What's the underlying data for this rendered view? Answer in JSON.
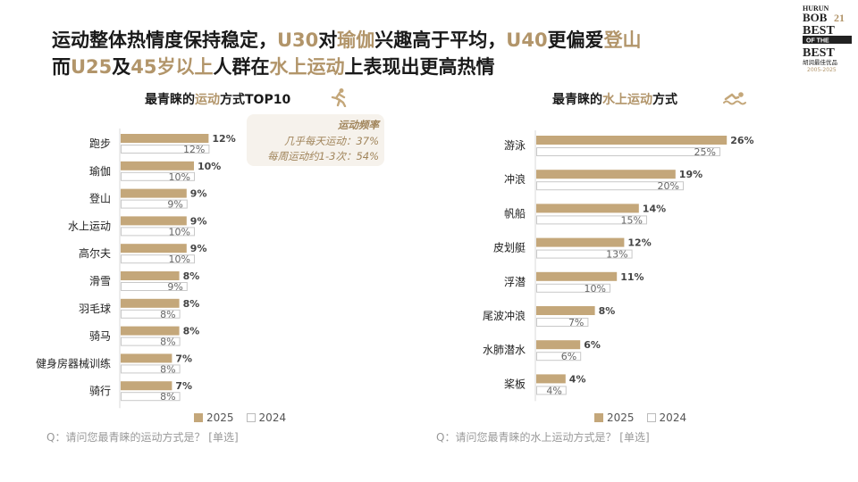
{
  "headline": {
    "line1": [
      {
        "t": "运动整体热情度保持稳定，",
        "h": false
      },
      {
        "t": "U30",
        "h": true
      },
      {
        "t": "对",
        "h": false
      },
      {
        "t": "瑜伽",
        "h": true
      },
      {
        "t": "兴趣高于平均，",
        "h": false
      },
      {
        "t": "U40",
        "h": true
      },
      {
        "t": "更偏爱",
        "h": false
      },
      {
        "t": "登山",
        "h": true
      }
    ],
    "line2": [
      {
        "t": "而",
        "h": false
      },
      {
        "t": "U25",
        "h": true
      },
      {
        "t": "及",
        "h": false
      },
      {
        "t": "45岁以上",
        "h": true
      },
      {
        "t": "人群在",
        "h": false
      },
      {
        "t": "水上运动",
        "h": true
      },
      {
        "t": "上表现出更高热情",
        "h": false
      }
    ]
  },
  "logo": {
    "line1": "HURUN",
    "line2": "BOB",
    "num": "21",
    "line3": "BEST",
    "line4": "OF THE",
    "line5": "BEST",
    "line6": "胡润最佳优品",
    "years": "2005-2025"
  },
  "left_panel": {
    "title_pre": "最青睐的",
    "title_hl": "运动",
    "title_post": "方式TOP10",
    "icon": "running-person-icon",
    "callout": {
      "title": "运动频率",
      "line1": "几乎每天运动：37%",
      "line2": "每周运动约1-3次：54%"
    },
    "question": "Q：请问您最青睐的运动方式是？ [单选]"
  },
  "right_panel": {
    "title_pre": "最青睐的",
    "title_hl": "水上运动",
    "title_post": "方式",
    "icon": "swimmer-icon",
    "question": "Q：请问您最青睐的水上运动方式是？ [单选]"
  },
  "legend": {
    "y2025": "2025",
    "y2024": "2024"
  },
  "colors": {
    "series2025": "#c4a77a",
    "series2024": "#ffffff",
    "highlight": "#b2956a"
  },
  "chart_data": [
    {
      "type": "bar",
      "orientation": "horizontal",
      "title": "最青睐的运动方式TOP10",
      "categories": [
        "跑步",
        "瑜伽",
        "登山",
        "水上运动",
        "高尔夫",
        "滑雪",
        "羽毛球",
        "骑马",
        "健身房器械训练",
        "骑行"
      ],
      "series": [
        {
          "name": "2025",
          "values": [
            12,
            10,
            9,
            9,
            9,
            8,
            8,
            8,
            7,
            7
          ]
        },
        {
          "name": "2024",
          "values": [
            12,
            10,
            9,
            10,
            10,
            9,
            8,
            8,
            8,
            8
          ]
        }
      ],
      "unit": "%"
    },
    {
      "type": "bar",
      "orientation": "horizontal",
      "title": "最青睐的水上运动方式",
      "categories": [
        "游泳",
        "冲浪",
        "帆船",
        "皮划艇",
        "浮潜",
        "尾波冲浪",
        "水肺潜水",
        "桨板"
      ],
      "series": [
        {
          "name": "2025",
          "values": [
            26,
            19,
            14,
            12,
            11,
            8,
            6,
            4
          ]
        },
        {
          "name": "2024",
          "values": [
            25,
            20,
            15,
            13,
            10,
            7,
            6,
            4
          ]
        }
      ],
      "unit": "%"
    }
  ]
}
